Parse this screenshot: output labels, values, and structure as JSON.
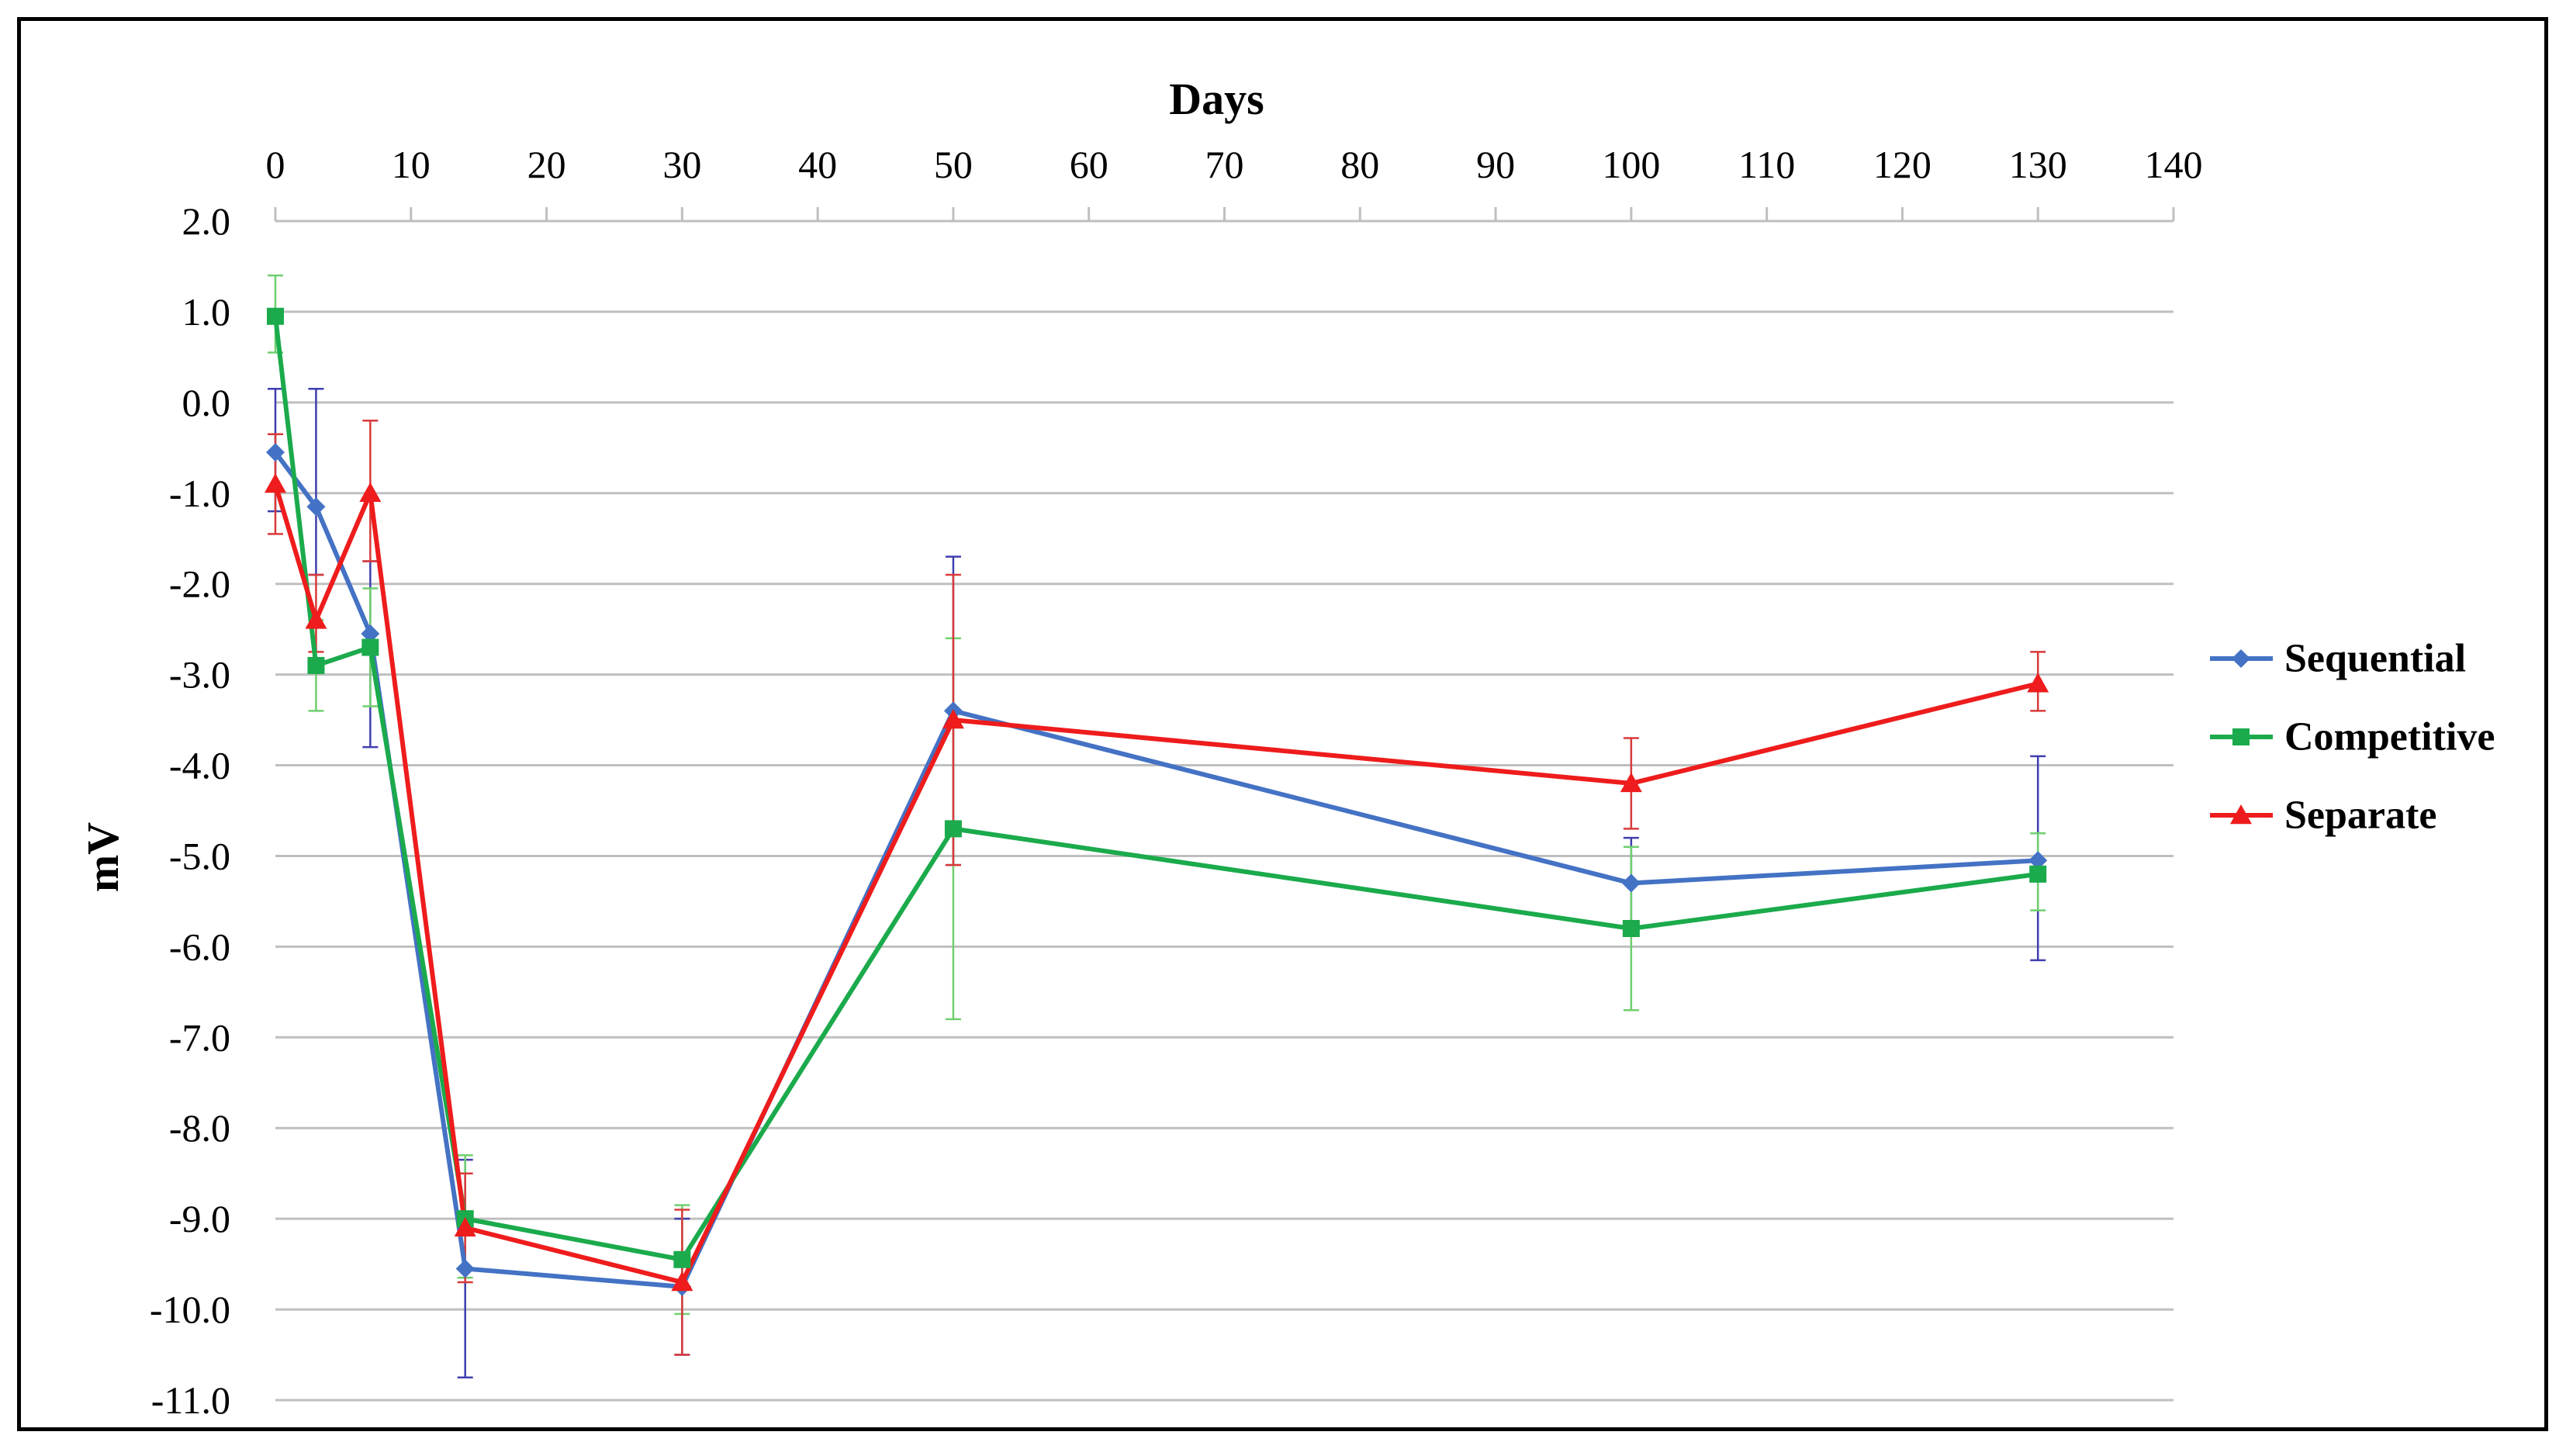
{
  "chart_data": {
    "type": "line",
    "xlabel": "Days",
    "ylabel": "mV",
    "xlim": [
      0,
      140
    ],
    "ylim": [
      -11,
      2
    ],
    "x_ticks": [
      0,
      10,
      20,
      30,
      40,
      50,
      60,
      70,
      80,
      90,
      100,
      110,
      120,
      130,
      140
    ],
    "y_ticks": [
      2.0,
      1.0,
      0.0,
      -1.0,
      -2.0,
      -3.0,
      -4.0,
      -5.0,
      -6.0,
      -7.0,
      -8.0,
      -9.0,
      -10.0,
      -11.0
    ],
    "x_axis_position": "top",
    "grid": "horizontal",
    "legend_position": "right",
    "series": [
      {
        "name": "Sequential",
        "color": "#4472C4",
        "marker": "diamond",
        "x": [
          0,
          3,
          7,
          14,
          30,
          50,
          100,
          130
        ],
        "y": [
          -0.55,
          -1.15,
          -2.55,
          -9.55,
          -9.75,
          -3.4,
          -5.3,
          -5.05
        ],
        "error_low": [
          -1.2,
          -1.9,
          -3.8,
          -10.75,
          -10.5,
          -5.1,
          -5.85,
          -6.15
        ],
        "error_high": [
          0.15,
          0.15,
          -1.75,
          -8.35,
          -9.0,
          -1.7,
          -4.8,
          -3.9
        ],
        "error_color": "#3F3FAF"
      },
      {
        "name": "Competitive",
        "color": "#1BAA4C",
        "marker": "square",
        "x": [
          0,
          3,
          7,
          14,
          30,
          50,
          100,
          130
        ],
        "y": [
          0.95,
          -2.9,
          -2.7,
          -9.0,
          -9.45,
          -4.7,
          -5.8,
          -5.2
        ],
        "error_low": [
          0.55,
          -3.4,
          -3.35,
          -9.65,
          -10.05,
          -6.8,
          -6.7,
          -5.6
        ],
        "error_high": [
          1.4,
          -2.4,
          -2.05,
          -8.3,
          -8.85,
          -2.6,
          -4.9,
          -4.75
        ],
        "error_color": "#6FCF6F"
      },
      {
        "name": "Separate",
        "color": "#EE1C1C",
        "marker": "triangle",
        "x": [
          0,
          3,
          7,
          14,
          30,
          50,
          100,
          130
        ],
        "y": [
          -0.9,
          -2.4,
          -1.0,
          -9.1,
          -9.7,
          -3.5,
          -4.2,
          -3.1
        ],
        "error_low": [
          -1.45,
          -2.75,
          -1.75,
          -9.7,
          -10.5,
          -5.1,
          -4.7,
          -3.4
        ],
        "error_high": [
          -0.35,
          -1.9,
          -0.2,
          -8.5,
          -8.9,
          -1.9,
          -3.7,
          -2.75
        ],
        "error_color": "#D93A3A"
      }
    ]
  }
}
